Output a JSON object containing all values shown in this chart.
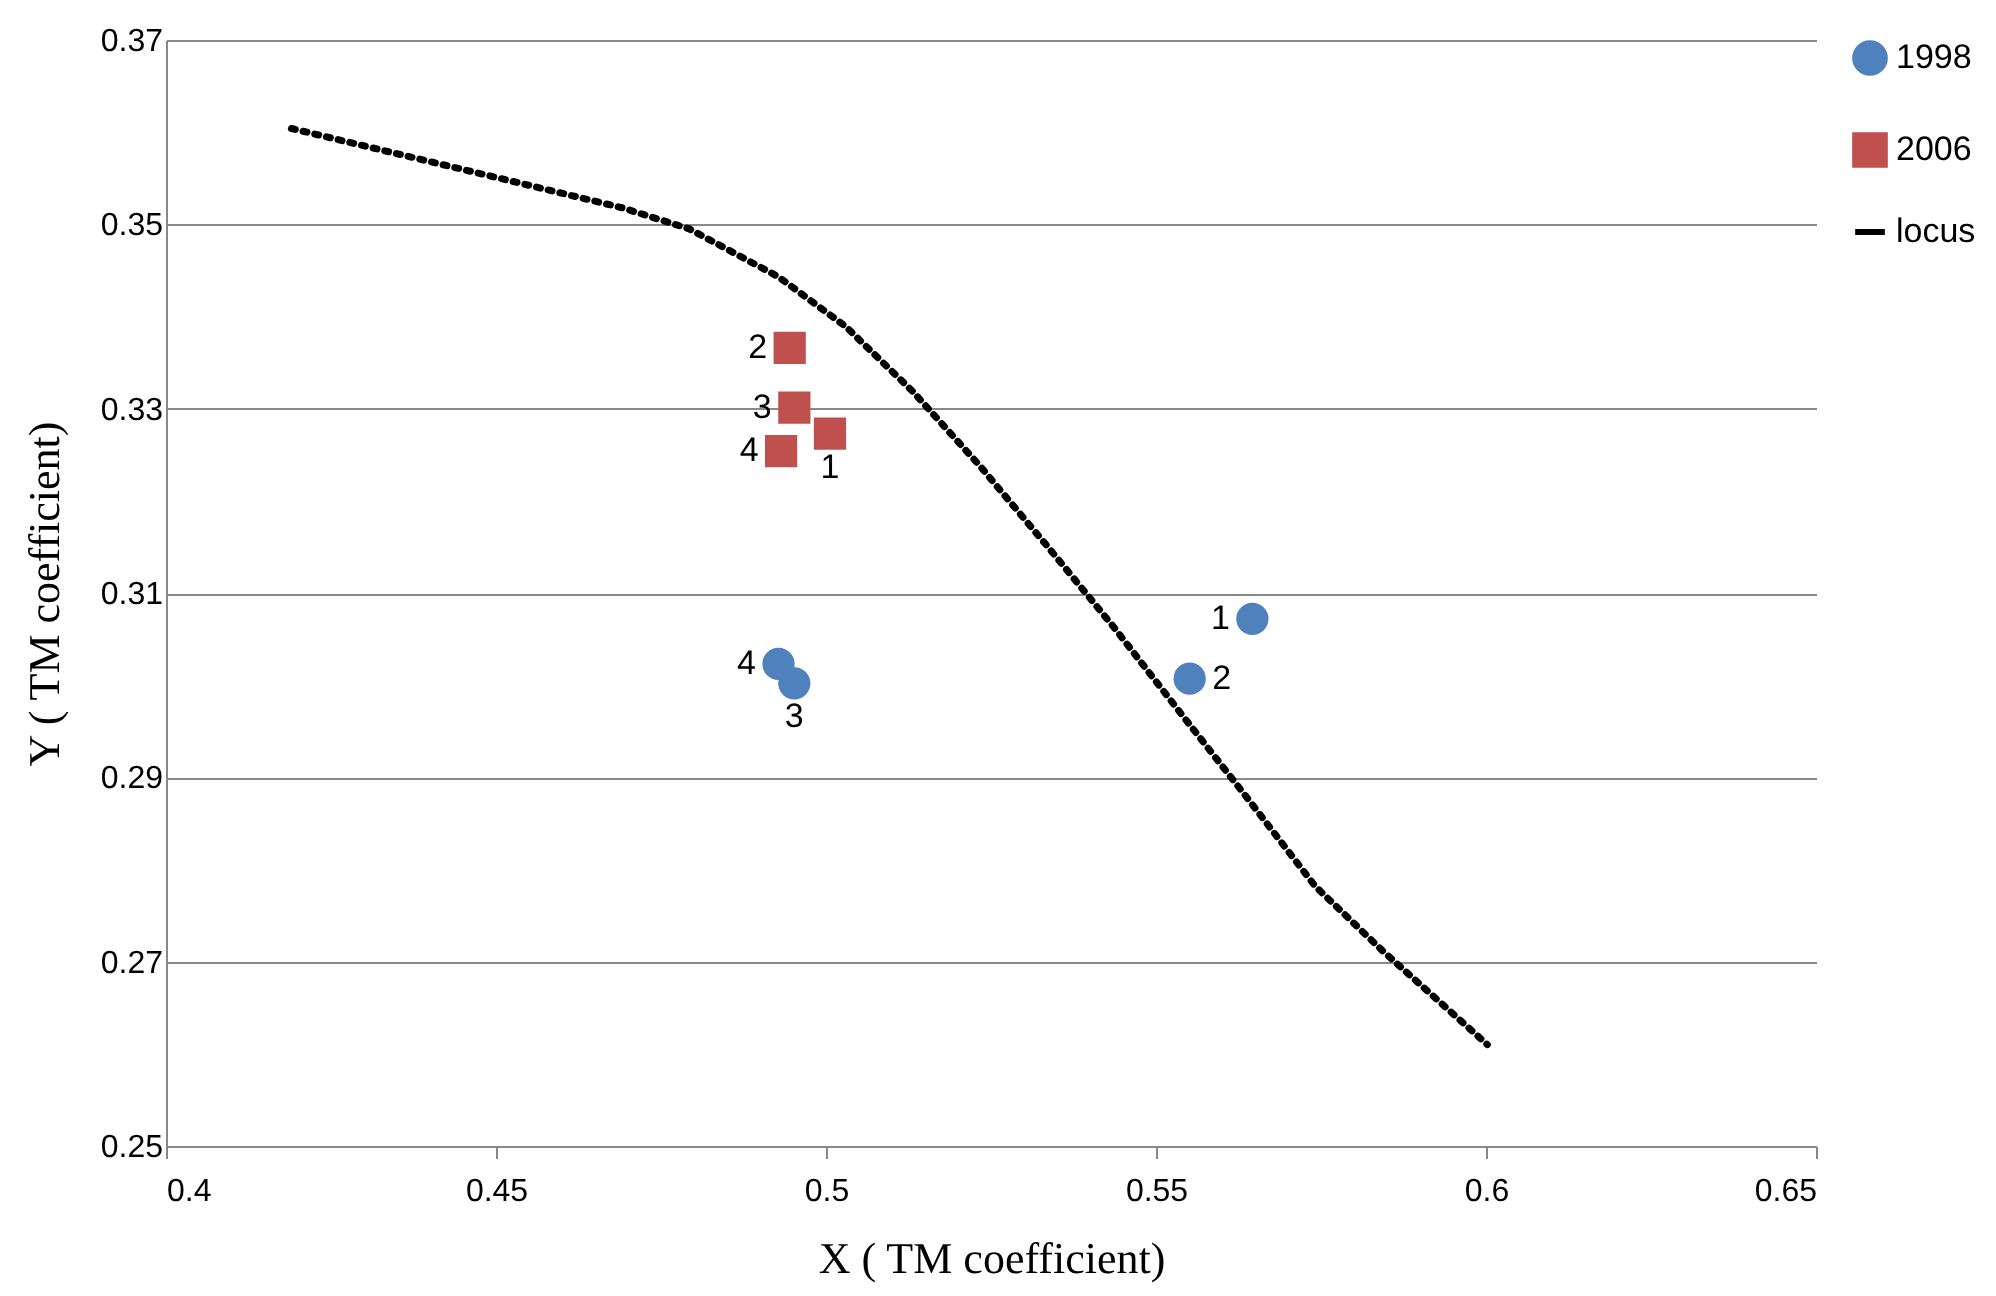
{
  "chart_data": {
    "type": "scatter",
    "xlabel": "X ( TM coefficient)",
    "ylabel": "Y ( TM coefficient)",
    "xlim": [
      0.4,
      0.65
    ],
    "xticks": [
      0.4,
      0.45,
      0.5,
      0.55,
      0.6,
      0.65
    ],
    "ylim": [
      0.25,
      0.37
    ],
    "yticks": [
      0.25,
      0.27,
      0.29,
      0.31,
      0.33,
      0.35,
      0.37
    ],
    "grid": "y",
    "legend": "right",
    "series": [
      {
        "name": "1998",
        "color": "#4f81bd",
        "marker": "circle",
        "x": [
          0.5646,
          0.5551,
          0.4952,
          0.4928
        ],
        "values": [
          0.3072,
          0.3007,
          0.3002,
          0.3023
        ]
      },
      {
        "name": "2006",
        "color": "#c0504d",
        "marker": "square",
        "x": [
          0.5006,
          0.4945,
          0.4952,
          0.4932
        ],
        "values": [
          0.3273,
          0.3366,
          0.3301,
          0.3254
        ]
      },
      {
        "name": "locus",
        "type": "line",
        "color": "#000000",
        "marker": "none",
        "line_style": "dotted",
        "x": [
          0.419,
          0.4488,
          0.4691,
          0.4793,
          0.4928,
          0.503,
          0.5131,
          0.5233,
          0.5335,
          0.5436,
          0.5538,
          0.564,
          0.5741,
          0.5843,
          0.6002
        ],
        "values": [
          0.3604,
          0.3553,
          0.3518,
          0.3495,
          0.3443,
          0.3389,
          0.3319,
          0.3238,
          0.3151,
          0.3063,
          0.2969,
          0.2876,
          0.2782,
          0.2712,
          0.261
        ]
      }
    ],
    "annotations": [
      {
        "text": "1",
        "x": 0.5646,
        "y": 0.3072
      },
      {
        "text": "2",
        "x": 0.5551,
        "y": 0.3007
      },
      {
        "text": "3",
        "x": 0.4952,
        "y": 0.3002
      },
      {
        "text": "4",
        "x": 0.4928,
        "y": 0.3023
      },
      {
        "text": "2",
        "x": 0.4945,
        "y": 0.3366
      },
      {
        "text": "3",
        "x": 0.4952,
        "y": 0.3301
      },
      {
        "text": "4",
        "x": 0.4932,
        "y": 0.3254
      },
      {
        "text": "1",
        "x": 0.5006,
        "y": 0.3273
      }
    ]
  }
}
